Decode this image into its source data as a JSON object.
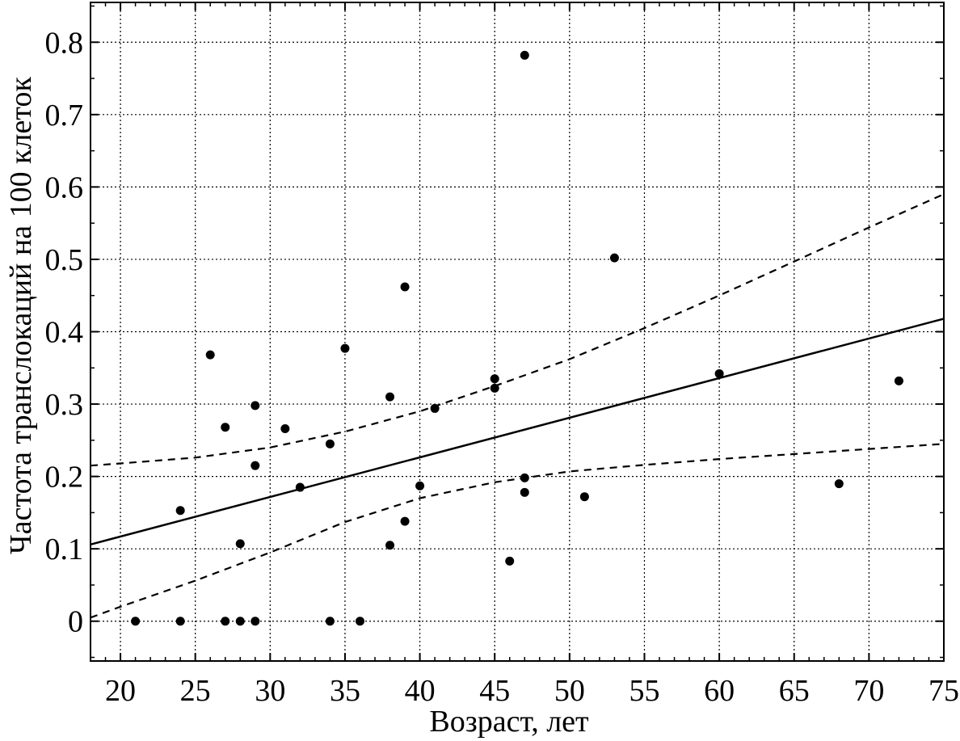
{
  "chart_data": {
    "type": "scatter",
    "xlabel": "Возраст, лет",
    "ylabel": "Частота транслокаций на 100 клеток",
    "xlim": [
      18,
      75
    ],
    "ylim": [
      -0.055,
      0.855
    ],
    "x_ticks": [
      20,
      25,
      30,
      35,
      40,
      45,
      50,
      55,
      60,
      65,
      70,
      75
    ],
    "x_tick_labels": [
      "20",
      "25",
      "30",
      "35",
      "40",
      "45",
      "50",
      "55",
      "60",
      "65",
      "70",
      "75"
    ],
    "y_ticks": [
      0,
      0.1,
      0.2,
      0.3,
      0.4,
      0.5,
      0.6,
      0.7,
      0.8
    ],
    "y_tick_labels": [
      "0",
      "0.1",
      "0.2",
      "0.3",
      "0.4",
      "0.5",
      "0.6",
      "0.7",
      "0.8"
    ],
    "grid": true,
    "points": [
      {
        "x": 21,
        "y": 0
      },
      {
        "x": 24,
        "y": 0
      },
      {
        "x": 27,
        "y": 0
      },
      {
        "x": 28,
        "y": 0
      },
      {
        "x": 29,
        "y": 0
      },
      {
        "x": 34,
        "y": 0
      },
      {
        "x": 36,
        "y": 0
      },
      {
        "x": 24,
        "y": 0.153
      },
      {
        "x": 26,
        "y": 0.368
      },
      {
        "x": 27,
        "y": 0.268
      },
      {
        "x": 28,
        "y": 0.107
      },
      {
        "x": 29,
        "y": 0.298
      },
      {
        "x": 29,
        "y": 0.215
      },
      {
        "x": 31,
        "y": 0.266
      },
      {
        "x": 32,
        "y": 0.185
      },
      {
        "x": 34,
        "y": 0.245
      },
      {
        "x": 35,
        "y": 0.377
      },
      {
        "x": 38,
        "y": 0.31
      },
      {
        "x": 38,
        "y": 0.105
      },
      {
        "x": 39,
        "y": 0.462
      },
      {
        "x": 39,
        "y": 0.138
      },
      {
        "x": 40,
        "y": 0.187
      },
      {
        "x": 41,
        "y": 0.294
      },
      {
        "x": 45,
        "y": 0.335
      },
      {
        "x": 45,
        "y": 0.322
      },
      {
        "x": 46,
        "y": 0.083
      },
      {
        "x": 47,
        "y": 0.782
      },
      {
        "x": 47,
        "y": 0.198
      },
      {
        "x": 47,
        "y": 0.178
      },
      {
        "x": 51,
        "y": 0.172
      },
      {
        "x": 53,
        "y": 0.502
      },
      {
        "x": 60,
        "y": 0.342
      },
      {
        "x": 68,
        "y": 0.19
      },
      {
        "x": 72,
        "y": 0.332
      }
    ],
    "regression_line": {
      "x": [
        18,
        75
      ],
      "y": [
        0.106,
        0.418
      ]
    },
    "confidence_upper": {
      "x": [
        18,
        20,
        25,
        30,
        35,
        40,
        45,
        50,
        55,
        60,
        65,
        70,
        75
      ],
      "y": [
        0.215,
        0.218,
        0.226,
        0.24,
        0.262,
        0.29,
        0.325,
        0.362,
        0.405,
        0.45,
        0.497,
        0.544,
        0.59
      ]
    },
    "confidence_lower": {
      "x": [
        18,
        20,
        25,
        30,
        35,
        40,
        45,
        50,
        55,
        60,
        65,
        70,
        75
      ],
      "y": [
        0.005,
        0.02,
        0.056,
        0.095,
        0.137,
        0.17,
        0.192,
        0.207,
        0.216,
        0.224,
        0.231,
        0.238,
        0.245
      ]
    }
  }
}
